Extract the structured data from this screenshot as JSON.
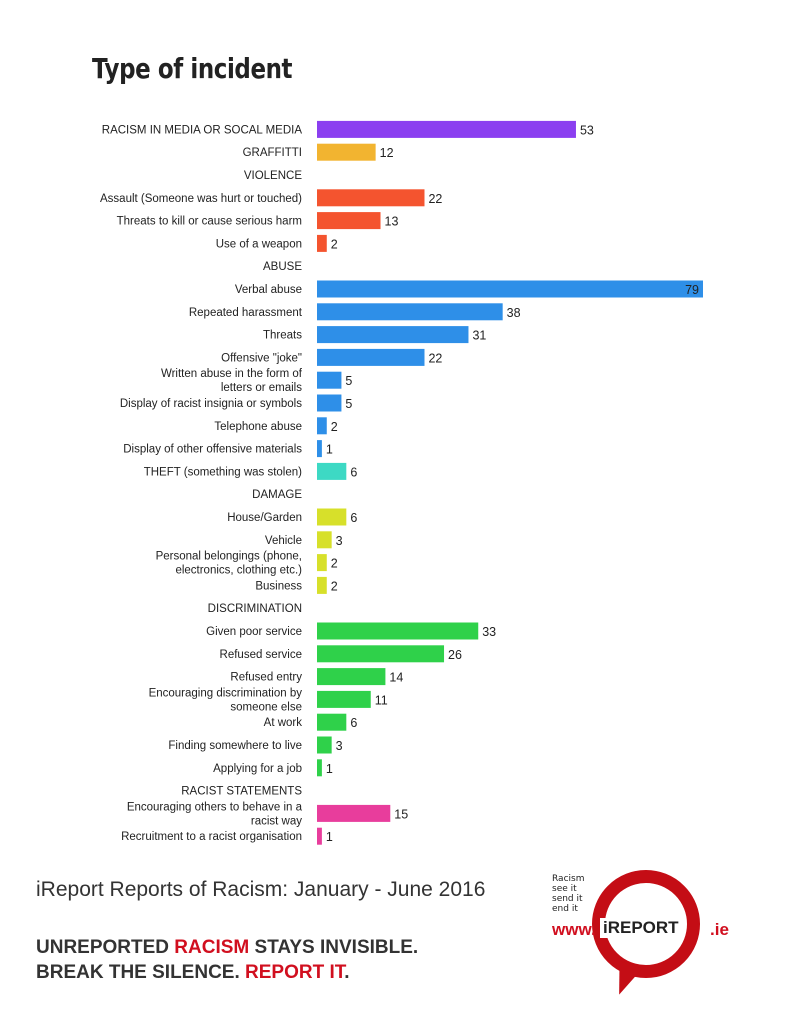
{
  "title": "Type of incident",
  "chart_data": {
    "type": "bar",
    "orientation": "horizontal",
    "rows": [
      {
        "label": "RACISM IN MEDIA OR SOCAL MEDIA",
        "value": 53,
        "color": "#8b3ff0"
      },
      {
        "label": "GRAFFITTI",
        "value": 12,
        "color": "#f2b430"
      },
      {
        "label": "VIOLENCE",
        "value": null,
        "color": null
      },
      {
        "label": "Assault (Someone was hurt or touched)",
        "value": 22,
        "color": "#f4542f"
      },
      {
        "label": "Threats to kill or cause serious harm",
        "value": 13,
        "color": "#f4542f"
      },
      {
        "label": "Use of a weapon",
        "value": 2,
        "color": "#f4542f"
      },
      {
        "label": "ABUSE",
        "value": null,
        "color": null
      },
      {
        "label": "Verbal abuse",
        "value": 79,
        "color": "#2e8fe8"
      },
      {
        "label": "Repeated harassment",
        "value": 38,
        "color": "#2e8fe8"
      },
      {
        "label": "Threats",
        "value": 31,
        "color": "#2e8fe8"
      },
      {
        "label": "Offensive \"joke\"",
        "value": 22,
        "color": "#2e8fe8"
      },
      {
        "label": "Written abuse in the form of letters or emails",
        "value": 5,
        "color": "#2e8fe8"
      },
      {
        "label": "Display of racist insignia or symbols",
        "value": 5,
        "color": "#2e8fe8"
      },
      {
        "label": "Telephone abuse",
        "value": 2,
        "color": "#2e8fe8"
      },
      {
        "label": "Display of other offensive materials",
        "value": 1,
        "color": "#2e8fe8"
      },
      {
        "label": "THEFT (something was stolen)",
        "value": 6,
        "color": "#3dd9c4"
      },
      {
        "label": "DAMAGE",
        "value": null,
        "color": null
      },
      {
        "label": "House/Garden",
        "value": 6,
        "color": "#d7e02a"
      },
      {
        "label": "Vehicle",
        "value": 3,
        "color": "#d7e02a"
      },
      {
        "label": "Personal belongings (phone, electronics, clothing etc.)",
        "value": 2,
        "color": "#d7e02a"
      },
      {
        "label": "Business",
        "value": 2,
        "color": "#d7e02a"
      },
      {
        "label": "DISCRIMINATION",
        "value": null,
        "color": null
      },
      {
        "label": "Given poor service",
        "value": 33,
        "color": "#2fd14a"
      },
      {
        "label": "Refused service",
        "value": 26,
        "color": "#2fd14a"
      },
      {
        "label": "Refused entry",
        "value": 14,
        "color": "#2fd14a"
      },
      {
        "label": "Encouraging discrimination by someone else",
        "value": 11,
        "color": "#2fd14a"
      },
      {
        "label": "At work",
        "value": 6,
        "color": "#2fd14a"
      },
      {
        "label": "Finding somewhere to live",
        "value": 3,
        "color": "#2fd14a"
      },
      {
        "label": "Applying for a job",
        "value": 1,
        "color": "#2fd14a"
      },
      {
        "label": "RACIST STATEMENTS",
        "value": null,
        "color": null
      },
      {
        "label": "Encouraging others to behave in a racist way",
        "value": 15,
        "color": "#e83d9c"
      },
      {
        "label": "Recruitment to a racist organisation",
        "value": 1,
        "color": "#e83d9c"
      }
    ],
    "xlim": [
      0,
      79
    ]
  },
  "caption": "iReport Reports of Racism: January - June 2016",
  "slogan": {
    "line1_a": "UNREPORTED ",
    "line1_b": "RACISM",
    "line1_c": " STAYS INVISIBLE.",
    "line2_a": "BREAK THE SILENCE. ",
    "line2_b": "REPORT IT",
    "line2_c": "."
  },
  "logo": {
    "tagline": [
      "Racism",
      "see it",
      "send it",
      "end it"
    ],
    "www": "www.",
    "word": "iREPORT",
    "domain": ".ie"
  }
}
